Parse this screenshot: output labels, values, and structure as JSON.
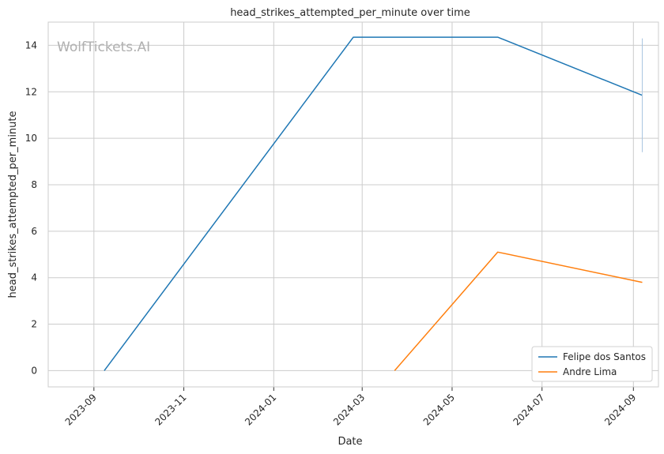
{
  "watermark": "WolfTickets.AI",
  "chart_data": {
    "type": "line",
    "title": "head_strikes_attempted_per_minute over time",
    "xlabel": "Date",
    "ylabel": "head_strikes_attempted_per_minute",
    "xlim": [
      "2023-08-01",
      "2024-09-18"
    ],
    "ylim": [
      -0.7,
      15
    ],
    "x_ticks": [
      "2023-09",
      "2023-11",
      "2024-01",
      "2024-03",
      "2024-05",
      "2024-07",
      "2024-09"
    ],
    "y_ticks": [
      0,
      2,
      4,
      6,
      8,
      10,
      12,
      14
    ],
    "grid": true,
    "legend_position": "lower-right",
    "series": [
      {
        "name": "Felipe dos Santos",
        "color": "#1f77b4",
        "points": [
          {
            "x": "2023-09-08",
            "y": 0
          },
          {
            "x": "2024-02-24",
            "y": 14.35
          },
          {
            "x": "2024-06-01",
            "y": 14.35
          },
          {
            "x": "2024-09-07",
            "y": 11.85
          }
        ],
        "error_bar": {
          "x": "2024-09-07",
          "low": 9.4,
          "high": 14.3
        }
      },
      {
        "name": "Andre Lima",
        "color": "#ff7f0e",
        "points": [
          {
            "x": "2024-03-23",
            "y": 0
          },
          {
            "x": "2024-06-01",
            "y": 5.1
          },
          {
            "x": "2024-09-07",
            "y": 3.8
          }
        ]
      }
    ]
  }
}
